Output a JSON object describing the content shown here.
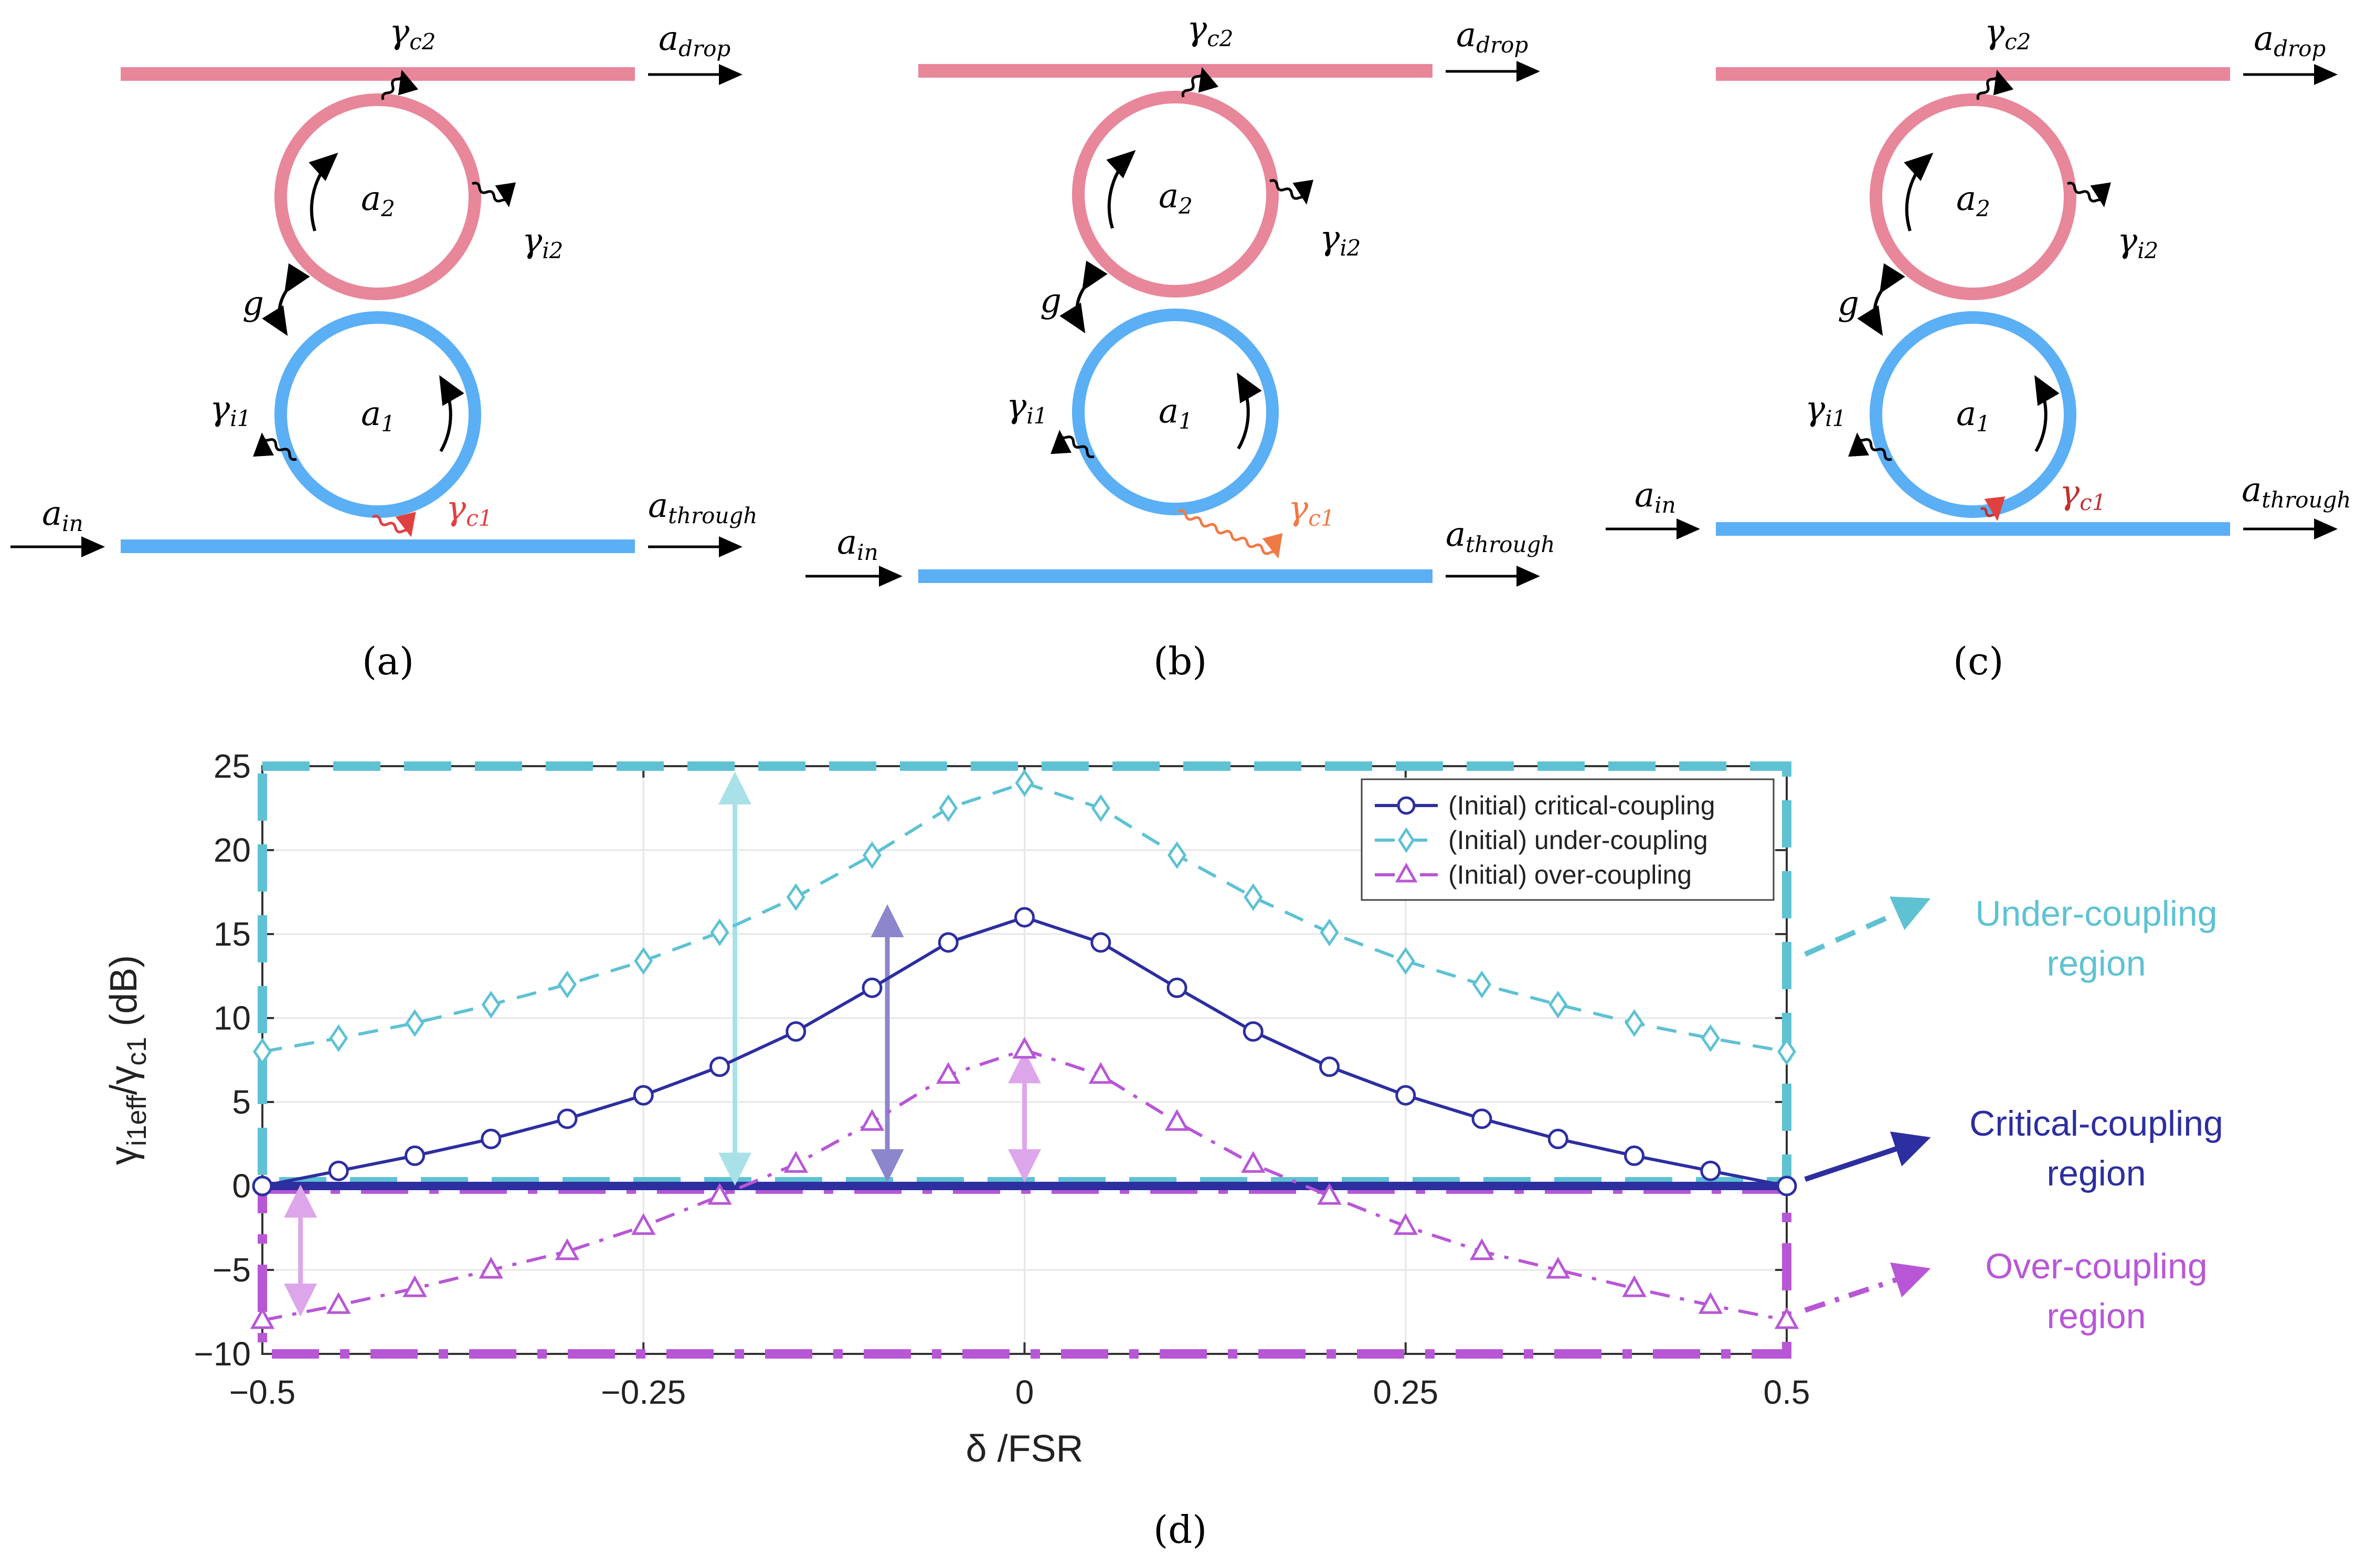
{
  "colors": {
    "pink": "#e8869a",
    "blue": "#5aaff5",
    "red": "#e04040",
    "orange": "#f07a45",
    "navy": "#2d2ea0",
    "cyan": "#5ec2d3",
    "violet": "#b857d6",
    "light_cyan": "#a8e1e8",
    "light_navy": "#8c86cc",
    "light_violet": "#dea6ea"
  },
  "panels": [
    {
      "id": "a",
      "label": "(a)",
      "ain": "a",
      "ain_sub": "in",
      "adrop": "a",
      "adrop_sub": "drop",
      "athrough": "a",
      "athrough_sub": "through",
      "a1": "a",
      "a1_sub": "1",
      "a2": "a",
      "a2_sub": "2",
      "g": "g",
      "gc2": "γ",
      "gc2_sub": "c2",
      "gi2": "γ",
      "gi2_sub": "i2",
      "gi1": "γ",
      "gi1_sub": "i1",
      "gc1": "γ",
      "gc1_sub": "c1"
    },
    {
      "id": "b",
      "label": "(b)",
      "ain": "a",
      "ain_sub": "in",
      "adrop": "a",
      "adrop_sub": "drop",
      "athrough": "a",
      "athrough_sub": "through",
      "a1": "a",
      "a1_sub": "1",
      "a2": "a",
      "a2_sub": "2",
      "g": "g",
      "gc2": "γ",
      "gc2_sub": "c2",
      "gi2": "γ",
      "gi2_sub": "i2",
      "gi1": "γ",
      "gi1_sub": "i1",
      "gc1": "γ",
      "gc1_sub": "c1"
    },
    {
      "id": "c",
      "label": "(c)",
      "ain": "a",
      "ain_sub": "in",
      "adrop": "a",
      "adrop_sub": "drop",
      "athrough": "a",
      "athrough_sub": "through",
      "a1": "a",
      "a1_sub": "1",
      "a2": "a",
      "a2_sub": "2",
      "g": "g",
      "gc2": "γ",
      "gc2_sub": "c2",
      "gi2": "γ",
      "gi2_sub": "i2",
      "gi1": "γ",
      "gi1_sub": "i1",
      "gc1": "γ",
      "gc1_sub": "c1"
    }
  ],
  "chart_data": {
    "type": "line",
    "panel_label": "(d)",
    "title": "",
    "xlabel": "δ /FSR",
    "ylabel_main": "γ",
    "ylabel_sub1": "i1eff",
    "ylabel_mid": "/γ",
    "ylabel_sub2": "c1",
    "ylabel_unit": " (dB)",
    "xlim": [
      -0.5,
      0.5
    ],
    "ylim": [
      -10,
      25
    ],
    "xticks": [
      -0.5,
      -0.25,
      0,
      0.25,
      0.5
    ],
    "xtick_labels": [
      "−0.5",
      "−0.25",
      "0",
      "0.25",
      "0.5"
    ],
    "yticks": [
      -10,
      -5,
      0,
      5,
      10,
      15,
      20,
      25
    ],
    "ytick_labels": [
      "−10",
      "−5",
      "0",
      "5",
      "10",
      "15",
      "20",
      "25"
    ],
    "grid": true,
    "legend_position": "top-right",
    "x": [
      -0.5,
      -0.45,
      -0.4,
      -0.35,
      -0.3,
      -0.25,
      -0.2,
      -0.15,
      -0.1,
      -0.05,
      0,
      0.05,
      0.1,
      0.15,
      0.2,
      0.25,
      0.3,
      0.35,
      0.4,
      0.45,
      0.5
    ],
    "series": [
      {
        "name": "(Initial) critical-coupling",
        "style": "solid",
        "marker": "circle",
        "color": "#2d2ea0",
        "values": [
          0.0,
          0.9,
          1.8,
          2.8,
          4.0,
          5.4,
          7.1,
          9.2,
          11.8,
          14.5,
          16.0,
          14.5,
          11.8,
          9.2,
          7.1,
          5.4,
          4.0,
          2.8,
          1.8,
          0.9,
          0.0
        ]
      },
      {
        "name": "(Initial) under-coupling",
        "style": "dash",
        "marker": "diamond",
        "color": "#5ec2d3",
        "values": [
          8.0,
          8.8,
          9.7,
          10.8,
          12.0,
          13.4,
          15.1,
          17.2,
          19.7,
          22.5,
          24.0,
          22.5,
          19.7,
          17.2,
          15.1,
          13.4,
          12.0,
          10.8,
          9.7,
          8.8,
          8.0
        ]
      },
      {
        "name": "(Initial) over-coupling",
        "style": "dashdot",
        "marker": "triangle",
        "color": "#b857d6",
        "values": [
          -8.0,
          -7.1,
          -6.1,
          -5.0,
          -3.9,
          -2.4,
          -0.6,
          1.3,
          3.8,
          6.6,
          8.1,
          6.6,
          3.8,
          1.3,
          -0.6,
          -2.4,
          -3.9,
          -5.0,
          -6.1,
          -7.1,
          -8.0
        ]
      }
    ],
    "regions": [
      {
        "name": "Under-coupling region",
        "line1": "Under-coupling",
        "line2": "region",
        "color": "#5ec2d3",
        "y_from": 0,
        "y_to": 25
      },
      {
        "name": "Critical-coupling region",
        "line1": "Critical-coupling",
        "line2": "region",
        "color": "#2d2ea0",
        "y_from": 0,
        "y_to": 0
      },
      {
        "name": "Over-coupling region",
        "line1": "Over-coupling",
        "line2": "region",
        "color": "#b857d6",
        "y_from": -10,
        "y_to": 0
      }
    ],
    "annotation_arrows": [
      {
        "name": "under-coupling-shift",
        "x": -0.19,
        "y_from": 0.3,
        "y_to": 24.4,
        "color": "#a8e1e8"
      },
      {
        "name": "critical-coupling-shift",
        "x": -0.09,
        "y_from": 0.5,
        "y_to": 16.5,
        "color": "#8c86cc"
      },
      {
        "name": "over-coupling-shift-center",
        "x": 0.0,
        "y_from": 0.5,
        "y_to": 7.8,
        "color": "#dea6ea"
      },
      {
        "name": "over-coupling-shift-edge",
        "x": -0.475,
        "y_from": -0.2,
        "y_to": -7.5,
        "color": "#dea6ea"
      }
    ]
  }
}
